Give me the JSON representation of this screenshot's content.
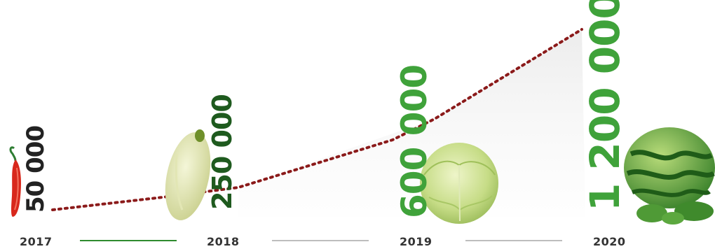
{
  "colors": {
    "dark_green": "#1e5a1e",
    "bright_green": "#3fa23a",
    "black": "#222222",
    "timeline_active": "#2e8b2e",
    "timeline_inactive": "#bdbdbd",
    "dotted_line": "#8b1a1a"
  },
  "milestones": [
    {
      "year": "2017",
      "value": "50 000",
      "icon": "chili-pepper-icon"
    },
    {
      "year": "2018",
      "value": "250 000",
      "icon": "squash-icon"
    },
    {
      "year": "2019",
      "value": "600 000",
      "icon": "cabbage-icon"
    },
    {
      "year": "2020",
      "value": "1 200 000",
      "icon": "watermelon-icon"
    }
  ],
  "timeline": {
    "segments": [
      {
        "state": "active"
      },
      {
        "state": "inactive"
      },
      {
        "state": "inactive"
      }
    ]
  }
}
